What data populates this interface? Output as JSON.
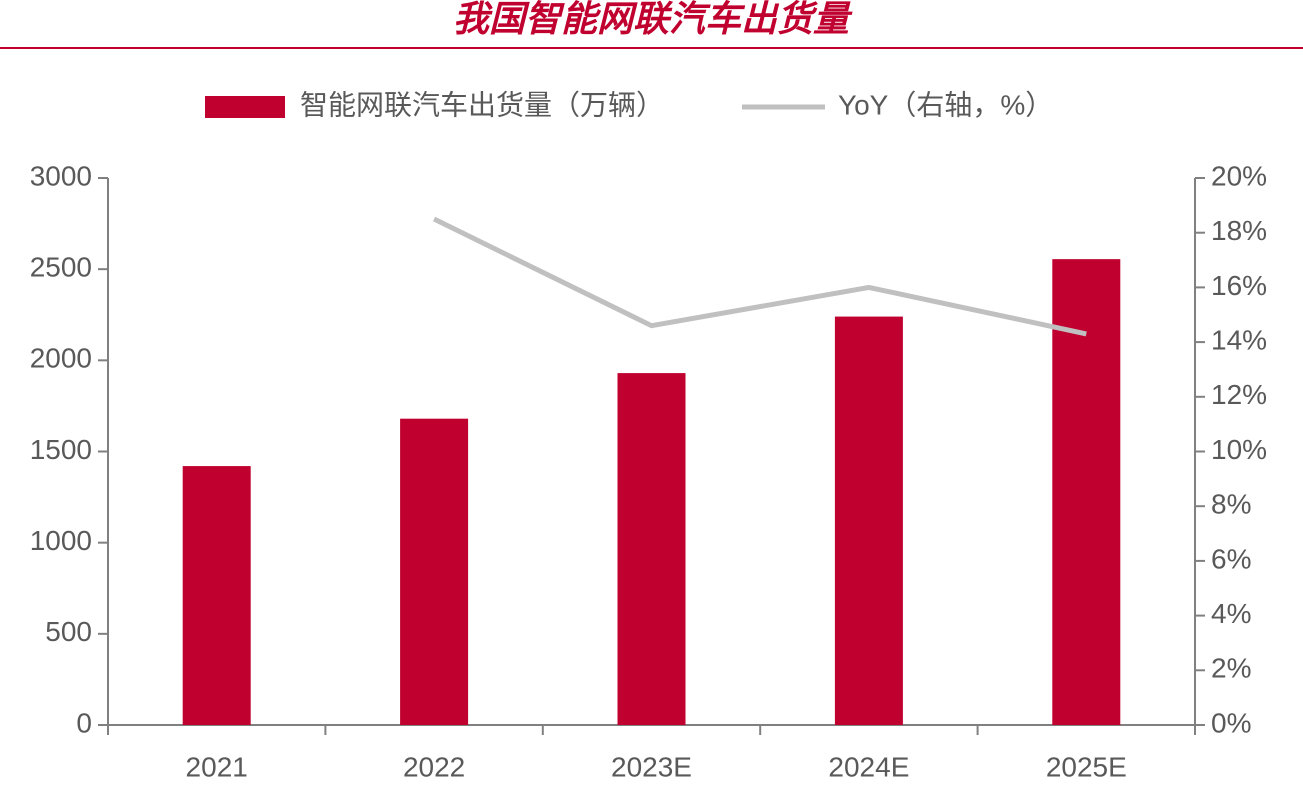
{
  "chart_data": {
    "type": "bar",
    "title": "我国智能网联汽车出货量",
    "categories": [
      "2021",
      "2022",
      "2023E",
      "2024E",
      "2025E"
    ],
    "series": [
      {
        "name": "智能网联汽车出货量（万辆）",
        "type": "bar",
        "color": "#c0002f",
        "values": [
          1420,
          1680,
          1930,
          2240,
          2555
        ]
      },
      {
        "name": "YoY（右轴，%）",
        "type": "line",
        "axis": "y2",
        "color": "#c0c0c0",
        "values": [
          null,
          18.5,
          14.6,
          16.0,
          14.3
        ]
      }
    ],
    "ylim": [
      0,
      3000
    ],
    "yticks": [
      0,
      500,
      1000,
      1500,
      2000,
      2500,
      3000
    ],
    "y2lim": [
      0,
      20
    ],
    "y2ticks": [
      {
        "value": 0,
        "label": "0%"
      },
      {
        "value": 2,
        "label": "2%"
      },
      {
        "value": 4,
        "label": "4%"
      },
      {
        "value": 6,
        "label": "6%"
      },
      {
        "value": 8,
        "label": "8%"
      },
      {
        "value": 10,
        "label": "10%"
      },
      {
        "value": 12,
        "label": "12%"
      },
      {
        "value": 14,
        "label": "14%"
      },
      {
        "value": 16,
        "label": "16%"
      },
      {
        "value": 18,
        "label": "18%"
      },
      {
        "value": 20,
        "label": "20%"
      }
    ],
    "legend": "top"
  }
}
